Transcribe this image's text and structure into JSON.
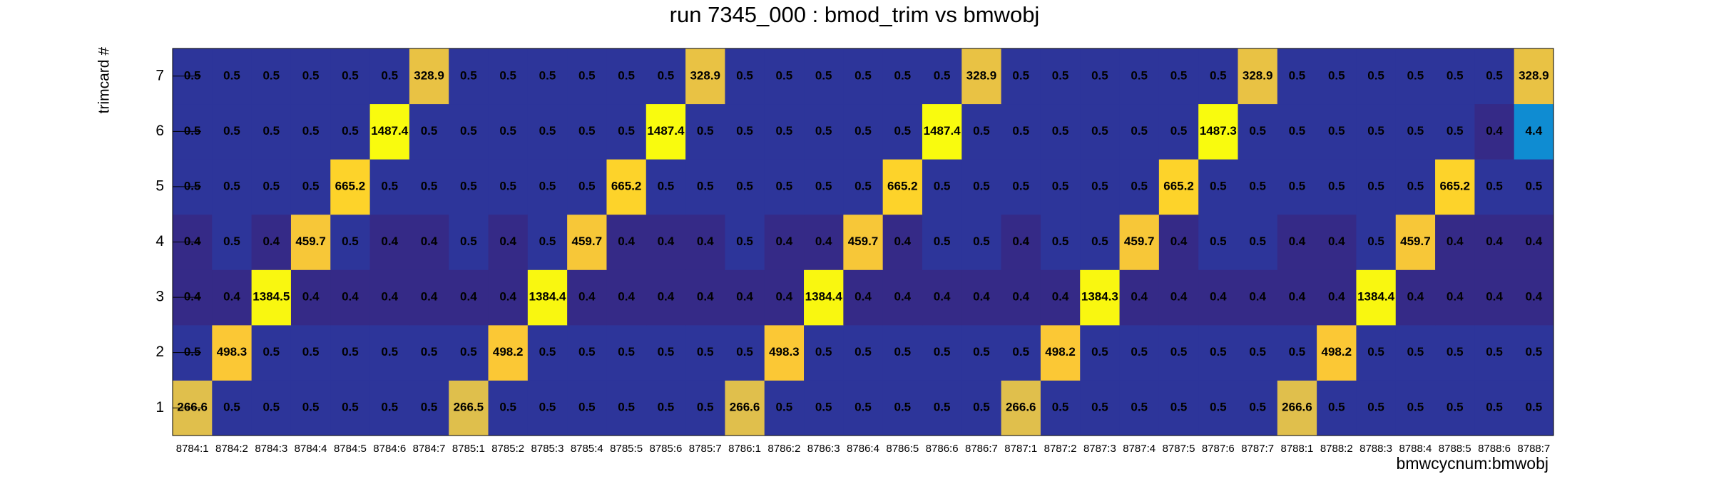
{
  "chart_data": {
    "type": "heatmap",
    "title": "run 7345_000 : bmod_trim vs bmwobj",
    "x_label": "bmwcycnum:bmwobj",
    "y_label": "trimcard #",
    "categories": [
      "8784:1",
      "8784:2",
      "8784:3",
      "8784:4",
      "8784:5",
      "8784:6",
      "8784:7",
      "8785:1",
      "8785:2",
      "8785:3",
      "8785:4",
      "8785:5",
      "8785:6",
      "8785:7",
      "8786:1",
      "8786:2",
      "8786:3",
      "8786:4",
      "8786:5",
      "8786:6",
      "8786:7",
      "8787:1",
      "8787:2",
      "8787:3",
      "8787:4",
      "8787:5",
      "8787:6",
      "8787:7",
      "8788:1",
      "8788:2",
      "8788:3",
      "8788:4",
      "8788:5",
      "8788:6",
      "8788:7"
    ],
    "ylim": [
      0.5,
      7.5
    ],
    "yticks": [
      1,
      2,
      3,
      4,
      5,
      6,
      7
    ],
    "zlog": true,
    "palette": "bird",
    "z": [
      [
        266.6,
        0.5,
        0.5,
        0.5,
        0.5,
        0.5,
        0.5,
        266.5,
        0.5,
        0.5,
        0.5,
        0.5,
        0.5,
        0.5,
        266.6,
        0.5,
        0.5,
        0.5,
        0.5,
        0.5,
        0.5,
        266.6,
        0.5,
        0.5,
        0.5,
        0.5,
        0.5,
        0.5,
        266.6,
        0.5,
        0.5,
        0.5,
        0.5,
        0.5,
        0.5
      ],
      [
        0.5,
        498.3,
        0.5,
        0.5,
        0.5,
        0.5,
        0.5,
        0.5,
        498.2,
        0.5,
        0.5,
        0.5,
        0.5,
        0.5,
        0.5,
        498.3,
        0.5,
        0.5,
        0.5,
        0.5,
        0.5,
        0.5,
        498.2,
        0.5,
        0.5,
        0.5,
        0.5,
        0.5,
        0.5,
        498.2,
        0.5,
        0.5,
        0.5,
        0.5,
        0.5
      ],
      [
        0.4,
        0.4,
        1384.5,
        0.4,
        0.4,
        0.4,
        0.4,
        0.4,
        0.4,
        1384.4,
        0.4,
        0.4,
        0.4,
        0.4,
        0.4,
        0.4,
        1384.4,
        0.4,
        0.4,
        0.4,
        0.4,
        0.4,
        0.4,
        1384.3,
        0.4,
        0.4,
        0.4,
        0.4,
        0.4,
        0.4,
        1384.4,
        0.4,
        0.4,
        0.4,
        0.4
      ],
      [
        0.4,
        0.5,
        0.4,
        459.7,
        0.5,
        0.4,
        0.4,
        0.5,
        0.4,
        0.5,
        459.7,
        0.4,
        0.4,
        0.4,
        0.5,
        0.4,
        0.4,
        459.7,
        0.4,
        0.5,
        0.5,
        0.4,
        0.5,
        0.5,
        459.7,
        0.4,
        0.5,
        0.5,
        0.4,
        0.4,
        0.5,
        459.7,
        0.4,
        0.4,
        0.4
      ],
      [
        0.5,
        0.5,
        0.5,
        0.5,
        665.2,
        0.5,
        0.5,
        0.5,
        0.5,
        0.5,
        0.5,
        665.2,
        0.5,
        0.5,
        0.5,
        0.5,
        0.5,
        0.5,
        665.2,
        0.5,
        0.5,
        0.5,
        0.5,
        0.5,
        0.5,
        665.2,
        0.5,
        0.5,
        0.5,
        0.5,
        0.5,
        0.5,
        665.2,
        0.5,
        0.5
      ],
      [
        0.5,
        0.5,
        0.5,
        0.5,
        0.5,
        1487.4,
        0.5,
        0.5,
        0.5,
        0.5,
        0.5,
        0.5,
        1487.4,
        0.5,
        0.5,
        0.5,
        0.5,
        0.5,
        0.5,
        1487.4,
        0.5,
        0.5,
        0.5,
        0.5,
        0.5,
        0.5,
        1487.3,
        0.5,
        0.5,
        0.5,
        0.5,
        0.5,
        0.5,
        0.4,
        4.4
      ],
      [
        0.5,
        0.5,
        0.5,
        0.5,
        0.5,
        0.5,
        328.9,
        0.5,
        0.5,
        0.5,
        0.5,
        0.5,
        0.5,
        328.9,
        0.5,
        0.5,
        0.5,
        0.5,
        0.5,
        0.5,
        328.9,
        0.5,
        0.5,
        0.5,
        0.5,
        0.5,
        0.5,
        328.9,
        0.5,
        0.5,
        0.5,
        0.5,
        0.5,
        0.5,
        328.9
      ]
    ]
  }
}
